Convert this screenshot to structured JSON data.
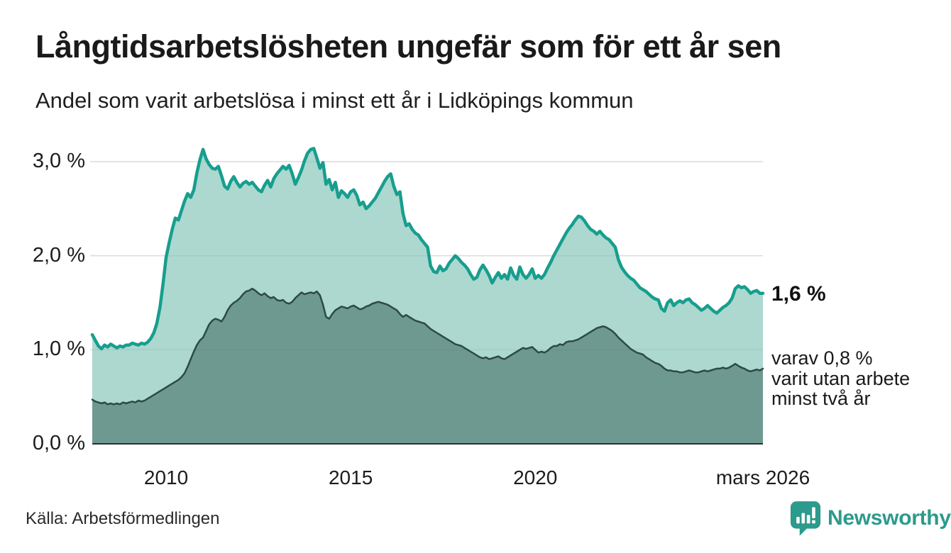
{
  "header": {
    "title": "Långtidsarbetslösheten ungefär som för ett år sen",
    "subtitle": "Andel som varit arbetslösa i minst ett år i Lidköpings kommun"
  },
  "annotations": {
    "latest_value": "1,6 %",
    "secondary_line1": "varav 0,8 %",
    "secondary_line2": "varit utan arbete",
    "secondary_line3": "minst två år"
  },
  "footer": {
    "source": "Källa: Arbetsförmedlingen",
    "logo_text": "Newsworthy",
    "logo_color": "#2c9a8c"
  },
  "chart_data": {
    "type": "area",
    "title": "Långtidsarbetslösheten ungefär som för ett år sen",
    "subtitle": "Andel som varit arbetslösa i minst ett år i Lidköpings kommun",
    "unit": "percent of workforce",
    "x_start_year": 2008,
    "x_step_months": 1,
    "x_domain": [
      2008,
      2026.1667
    ],
    "ylim": [
      0,
      3.24
    ],
    "grid": true,
    "gridline_color": "#dcdcdc",
    "axis_line_color": "#2f2f2f",
    "y_ticks": [
      {
        "value": 0,
        "label": "0,0 %"
      },
      {
        "value": 1,
        "label": "1,0 %"
      },
      {
        "value": 2,
        "label": "2,0 %"
      },
      {
        "value": 3,
        "label": "3,0 %"
      }
    ],
    "x_ticks": [
      {
        "year": 2010,
        "label": "2010"
      },
      {
        "year": 2015,
        "label": "2015"
      },
      {
        "year": 2020,
        "label": "2020"
      },
      {
        "year": 2026.1667,
        "label": "mars 2026"
      }
    ],
    "series": [
      {
        "name": "Andel arbetslösa minst ett år",
        "end_label": "1,6 %",
        "line_color": "#179e8e",
        "line_width": 4.5,
        "fill_color": "#8cc9bd",
        "fill_opacity": 0.72,
        "values": [
          1.16,
          1.1,
          1.04,
          1.01,
          1.05,
          1.03,
          1.06,
          1.04,
          1.02,
          1.04,
          1.03,
          1.05,
          1.05,
          1.07,
          1.06,
          1.05,
          1.07,
          1.06,
          1.08,
          1.12,
          1.18,
          1.28,
          1.45,
          1.7,
          1.98,
          2.14,
          2.28,
          2.4,
          2.38,
          2.48,
          2.58,
          2.66,
          2.62,
          2.7,
          2.88,
          3.02,
          3.13,
          3.03,
          2.97,
          2.93,
          2.92,
          2.95,
          2.85,
          2.74,
          2.71,
          2.79,
          2.84,
          2.78,
          2.73,
          2.77,
          2.79,
          2.76,
          2.78,
          2.74,
          2.7,
          2.68,
          2.75,
          2.8,
          2.73,
          2.82,
          2.87,
          2.91,
          2.95,
          2.92,
          2.96,
          2.87,
          2.76,
          2.83,
          2.91,
          3.01,
          3.09,
          3.13,
          3.14,
          3.04,
          2.93,
          2.99,
          2.76,
          2.81,
          2.7,
          2.78,
          2.62,
          2.69,
          2.66,
          2.62,
          2.68,
          2.7,
          2.64,
          2.54,
          2.57,
          2.5,
          2.53,
          2.57,
          2.61,
          2.67,
          2.73,
          2.79,
          2.84,
          2.87,
          2.74,
          2.65,
          2.68,
          2.45,
          2.32,
          2.34,
          2.28,
          2.24,
          2.22,
          2.17,
          2.13,
          2.09,
          1.89,
          1.83,
          1.82,
          1.89,
          1.84,
          1.86,
          1.92,
          1.96,
          2.0,
          1.97,
          1.93,
          1.9,
          1.86,
          1.8,
          1.75,
          1.77,
          1.85,
          1.9,
          1.85,
          1.79,
          1.71,
          1.77,
          1.82,
          1.76,
          1.8,
          1.75,
          1.87,
          1.79,
          1.75,
          1.88,
          1.8,
          1.76,
          1.8,
          1.86,
          1.76,
          1.79,
          1.76,
          1.8,
          1.87,
          1.93,
          2.0,
          2.06,
          2.12,
          2.18,
          2.24,
          2.29,
          2.33,
          2.38,
          2.42,
          2.41,
          2.37,
          2.32,
          2.28,
          2.26,
          2.23,
          2.26,
          2.22,
          2.19,
          2.17,
          2.13,
          2.09,
          1.96,
          1.88,
          1.83,
          1.79,
          1.76,
          1.74,
          1.7,
          1.66,
          1.64,
          1.62,
          1.59,
          1.56,
          1.54,
          1.53,
          1.44,
          1.41,
          1.5,
          1.53,
          1.47,
          1.5,
          1.52,
          1.5,
          1.53,
          1.54,
          1.5,
          1.48,
          1.45,
          1.42,
          1.44,
          1.47,
          1.44,
          1.41,
          1.39,
          1.42,
          1.45,
          1.47,
          1.5,
          1.55,
          1.65,
          1.68,
          1.66,
          1.67,
          1.64,
          1.6,
          1.62,
          1.63,
          1.6,
          1.6
        ]
      },
      {
        "name": "varav utan arbete minst två år",
        "end_label": "varav 0,8 % varit utan arbete minst två år",
        "line_color": "#2d4a45",
        "line_width": 2.5,
        "fill_color": "#2f5a52",
        "fill_opacity": 0.5,
        "values": [
          0.47,
          0.45,
          0.44,
          0.43,
          0.44,
          0.42,
          0.43,
          0.42,
          0.43,
          0.42,
          0.44,
          0.43,
          0.44,
          0.45,
          0.44,
          0.46,
          0.45,
          0.46,
          0.48,
          0.5,
          0.52,
          0.54,
          0.56,
          0.58,
          0.6,
          0.62,
          0.64,
          0.66,
          0.68,
          0.71,
          0.75,
          0.82,
          0.9,
          0.98,
          1.05,
          1.1,
          1.13,
          1.2,
          1.27,
          1.31,
          1.33,
          1.32,
          1.3,
          1.35,
          1.42,
          1.47,
          1.5,
          1.52,
          1.55,
          1.59,
          1.62,
          1.63,
          1.65,
          1.63,
          1.6,
          1.58,
          1.6,
          1.57,
          1.55,
          1.56,
          1.53,
          1.52,
          1.53,
          1.5,
          1.49,
          1.51,
          1.55,
          1.58,
          1.61,
          1.59,
          1.6,
          1.61,
          1.6,
          1.62,
          1.58,
          1.48,
          1.35,
          1.33,
          1.38,
          1.42,
          1.44,
          1.46,
          1.45,
          1.44,
          1.46,
          1.47,
          1.45,
          1.43,
          1.44,
          1.46,
          1.47,
          1.49,
          1.5,
          1.51,
          1.5,
          1.49,
          1.48,
          1.46,
          1.44,
          1.42,
          1.38,
          1.35,
          1.37,
          1.35,
          1.33,
          1.31,
          1.3,
          1.29,
          1.28,
          1.25,
          1.22,
          1.2,
          1.18,
          1.16,
          1.14,
          1.12,
          1.1,
          1.08,
          1.06,
          1.05,
          1.04,
          1.02,
          1.0,
          0.98,
          0.96,
          0.94,
          0.92,
          0.91,
          0.92,
          0.9,
          0.91,
          0.92,
          0.93,
          0.91,
          0.9,
          0.92,
          0.94,
          0.96,
          0.98,
          1.0,
          1.02,
          1.01,
          1.02,
          1.03,
          1.0,
          0.97,
          0.98,
          0.97,
          0.99,
          1.02,
          1.04,
          1.04,
          1.06,
          1.05,
          1.08,
          1.09,
          1.09,
          1.1,
          1.11,
          1.13,
          1.15,
          1.17,
          1.19,
          1.21,
          1.23,
          1.24,
          1.25,
          1.24,
          1.22,
          1.2,
          1.17,
          1.13,
          1.1,
          1.07,
          1.04,
          1.01,
          0.99,
          0.97,
          0.96,
          0.95,
          0.92,
          0.9,
          0.88,
          0.86,
          0.85,
          0.83,
          0.8,
          0.78,
          0.78,
          0.77,
          0.77,
          0.76,
          0.76,
          0.77,
          0.78,
          0.77,
          0.76,
          0.76,
          0.77,
          0.78,
          0.77,
          0.78,
          0.79,
          0.8,
          0.8,
          0.81,
          0.8,
          0.81,
          0.83,
          0.85,
          0.83,
          0.81,
          0.8,
          0.78,
          0.77,
          0.78,
          0.79,
          0.78,
          0.8
        ]
      }
    ]
  }
}
